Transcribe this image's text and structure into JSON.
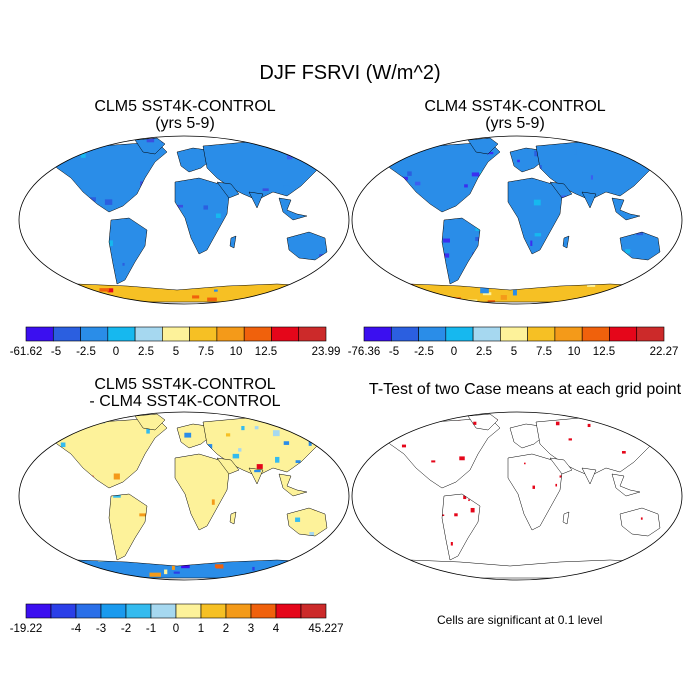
{
  "main_title": "DJF FSRVI (W/m^2)",
  "panels": [
    {
      "title_line1": "CLM5 SST4K-CONTROL",
      "title_line2": "(yrs 5-9)"
    },
    {
      "title_line1": "CLM4 SST4K-CONTROL",
      "title_line2": "(yrs 5-9)"
    },
    {
      "title_line1": "CLM5 SST4K-CONTROL",
      "title_line2": "- CLM4 SST4K-CONTROL"
    },
    {
      "title_line1": "T-Test of two Case means at each grid point",
      "title_line2": ""
    }
  ],
  "colorbars": [
    {
      "labels": [
        "-61.62",
        "-5",
        "-2.5",
        "0",
        "2.5",
        "5",
        "7.5",
        "10",
        "12.5",
        "",
        "23.99"
      ],
      "colors": [
        "#3b0ff0",
        "#2b5fe0",
        "#2a8de8",
        "#16b8ef",
        "#a6d8f0",
        "#fdf29a",
        "#f6c024",
        "#f49a19",
        "#f0610c",
        "#e5061a",
        "#cc2a2a"
      ]
    },
    {
      "labels": [
        "-76.36",
        "-5",
        "-2.5",
        "0",
        "2.5",
        "5",
        "7.5",
        "10",
        "12.5",
        "",
        "22.27"
      ],
      "colors": [
        "#3b0ff0",
        "#2b5fe0",
        "#2a8de8",
        "#16b8ef",
        "#a6d8f0",
        "#fdf29a",
        "#f6c024",
        "#f49a19",
        "#f0610c",
        "#e5061a",
        "#cc2a2a"
      ]
    },
    {
      "labels": [
        "-19.22",
        "",
        "-4",
        "-3",
        "-2",
        "-1",
        "0",
        "1",
        "2",
        "3",
        "4",
        "",
        "45.227"
      ],
      "colors": [
        "#3b0ff0",
        "#2b3fe8",
        "#2a6fe8",
        "#1a9aee",
        "#34bbef",
        "#a6d8f0",
        "#fdf29a",
        "#f6c024",
        "#f49a19",
        "#f0610c",
        "#e5061a",
        "#cc2a2a"
      ]
    }
  ],
  "note": "Cells are significant at 0.1 level",
  "colors": {
    "land_base": "#2a8de8",
    "ocean": "#ffffff",
    "signif": "#e5061a"
  }
}
